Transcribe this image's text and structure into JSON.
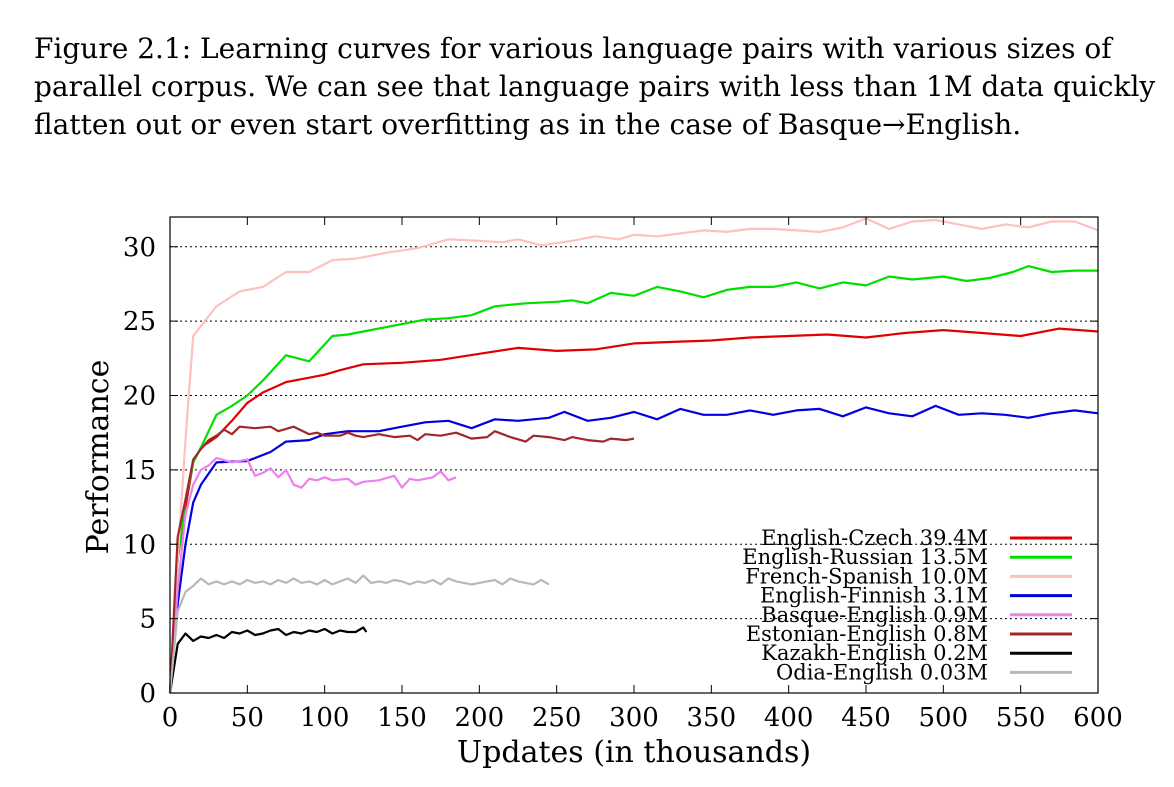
{
  "caption": "Figure 2.1: Learning curves for various language pairs with various sizes of parallel corpus. We can see that language pairs with less than 1M data quickly flatten out or even start overfitting as in the case of Basque→English.",
  "chart_data": {
    "type": "line",
    "title": "",
    "xlabel": "Updates (in thousands)",
    "ylabel": "Performance",
    "xlim": [
      0,
      600
    ],
    "ylim": [
      0,
      32
    ],
    "xticks": [
      0,
      50,
      100,
      150,
      200,
      250,
      300,
      350,
      400,
      450,
      500,
      550,
      600
    ],
    "yticks": [
      0,
      5,
      10,
      15,
      20,
      25,
      30
    ],
    "grid": "horizontal dotted",
    "legend_position": "bottom-right",
    "series": [
      {
        "name": "English-Czech 39.4M",
        "color": "#e00000",
        "points": [
          [
            0,
            0
          ],
          [
            5,
            9
          ],
          [
            10,
            12.5
          ],
          [
            15,
            15.5
          ],
          [
            20,
            16.5
          ],
          [
            30,
            17.2
          ],
          [
            40,
            18.3
          ],
          [
            50,
            19.5
          ],
          [
            60,
            20.2
          ],
          [
            75,
            20.9
          ],
          [
            90,
            21.2
          ],
          [
            100,
            21.4
          ],
          [
            110,
            21.7
          ],
          [
            125,
            22.1
          ],
          [
            150,
            22.2
          ],
          [
            175,
            22.4
          ],
          [
            200,
            22.8
          ],
          [
            225,
            23.2
          ],
          [
            250,
            23.0
          ],
          [
            275,
            23.1
          ],
          [
            300,
            23.5
          ],
          [
            325,
            23.6
          ],
          [
            350,
            23.7
          ],
          [
            375,
            23.9
          ],
          [
            400,
            24.0
          ],
          [
            425,
            24.1
          ],
          [
            450,
            23.9
          ],
          [
            475,
            24.2
          ],
          [
            500,
            24.4
          ],
          [
            525,
            24.2
          ],
          [
            550,
            24.0
          ],
          [
            575,
            24.5
          ],
          [
            600,
            24.3
          ]
        ]
      },
      {
        "name": "English-Russian 13.5M",
        "color": "#00e000",
        "points": [
          [
            0,
            0
          ],
          [
            5,
            9
          ],
          [
            10,
            13
          ],
          [
            15,
            15.5
          ],
          [
            20,
            16.5
          ],
          [
            30,
            18.7
          ],
          [
            40,
            19.3
          ],
          [
            50,
            20.0
          ],
          [
            60,
            21.0
          ],
          [
            75,
            22.7
          ],
          [
            90,
            22.3
          ],
          [
            105,
            24.0
          ],
          [
            115,
            24.1
          ],
          [
            125,
            24.3
          ],
          [
            150,
            24.8
          ],
          [
            165,
            25.1
          ],
          [
            180,
            25.2
          ],
          [
            195,
            25.4
          ],
          [
            210,
            26.0
          ],
          [
            230,
            26.2
          ],
          [
            250,
            26.3
          ],
          [
            260,
            26.4
          ],
          [
            270,
            26.2
          ],
          [
            285,
            26.9
          ],
          [
            300,
            26.7
          ],
          [
            315,
            27.3
          ],
          [
            330,
            27.0
          ],
          [
            345,
            26.6
          ],
          [
            360,
            27.1
          ],
          [
            375,
            27.3
          ],
          [
            390,
            27.3
          ],
          [
            405,
            27.6
          ],
          [
            420,
            27.2
          ],
          [
            435,
            27.6
          ],
          [
            450,
            27.4
          ],
          [
            465,
            28.0
          ],
          [
            480,
            27.8
          ],
          [
            500,
            28.0
          ],
          [
            515,
            27.7
          ],
          [
            530,
            27.9
          ],
          [
            545,
            28.3
          ],
          [
            555,
            28.7
          ],
          [
            570,
            28.3
          ],
          [
            585,
            28.4
          ],
          [
            600,
            28.4
          ]
        ]
      },
      {
        "name": "French-Spanish 10.0M",
        "color": "#ffc0c0",
        "points": [
          [
            0,
            0
          ],
          [
            5,
            9
          ],
          [
            10,
            17
          ],
          [
            15,
            24
          ],
          [
            30,
            26.0
          ],
          [
            45,
            27.0
          ],
          [
            60,
            27.3
          ],
          [
            75,
            28.3
          ],
          [
            90,
            28.3
          ],
          [
            105,
            29.1
          ],
          [
            120,
            29.2
          ],
          [
            140,
            29.6
          ],
          [
            160,
            29.9
          ],
          [
            180,
            30.5
          ],
          [
            200,
            30.4
          ],
          [
            215,
            30.3
          ],
          [
            225,
            30.5
          ],
          [
            240,
            30.1
          ],
          [
            260,
            30.4
          ],
          [
            275,
            30.7
          ],
          [
            290,
            30.5
          ],
          [
            300,
            30.8
          ],
          [
            315,
            30.7
          ],
          [
            330,
            30.9
          ],
          [
            345,
            31.1
          ],
          [
            360,
            31.0
          ],
          [
            375,
            31.2
          ],
          [
            390,
            31.2
          ],
          [
            405,
            31.1
          ],
          [
            420,
            31.0
          ],
          [
            435,
            31.3
          ],
          [
            450,
            31.9
          ],
          [
            465,
            31.2
          ],
          [
            480,
            31.7
          ],
          [
            495,
            31.8
          ],
          [
            510,
            31.5
          ],
          [
            525,
            31.2
          ],
          [
            540,
            31.5
          ],
          [
            555,
            31.3
          ],
          [
            570,
            31.7
          ],
          [
            585,
            31.7
          ],
          [
            600,
            31.1
          ]
        ]
      },
      {
        "name": "English-Finnish 3.1M",
        "color": "#0000e0",
        "points": [
          [
            0,
            0
          ],
          [
            5,
            6
          ],
          [
            10,
            10
          ],
          [
            15,
            12.8
          ],
          [
            20,
            14.0
          ],
          [
            30,
            15.5
          ],
          [
            50,
            15.6
          ],
          [
            65,
            16.2
          ],
          [
            75,
            16.9
          ],
          [
            90,
            17.0
          ],
          [
            100,
            17.4
          ],
          [
            115,
            17.6
          ],
          [
            135,
            17.6
          ],
          [
            150,
            17.9
          ],
          [
            165,
            18.2
          ],
          [
            180,
            18.3
          ],
          [
            195,
            17.8
          ],
          [
            210,
            18.4
          ],
          [
            225,
            18.3
          ],
          [
            245,
            18.5
          ],
          [
            255,
            18.9
          ],
          [
            270,
            18.3
          ],
          [
            285,
            18.5
          ],
          [
            300,
            18.9
          ],
          [
            315,
            18.4
          ],
          [
            330,
            19.1
          ],
          [
            345,
            18.7
          ],
          [
            360,
            18.7
          ],
          [
            375,
            19.0
          ],
          [
            390,
            18.7
          ],
          [
            405,
            19.0
          ],
          [
            420,
            19.1
          ],
          [
            435,
            18.6
          ],
          [
            450,
            19.2
          ],
          [
            465,
            18.8
          ],
          [
            480,
            18.6
          ],
          [
            495,
            19.3
          ],
          [
            510,
            18.7
          ],
          [
            525,
            18.8
          ],
          [
            540,
            18.7
          ],
          [
            555,
            18.5
          ],
          [
            570,
            18.8
          ],
          [
            585,
            19.0
          ],
          [
            600,
            18.8
          ]
        ]
      },
      {
        "name": "Basque-English 0.9M",
        "color": "#ee80ee",
        "points": [
          [
            0,
            0
          ],
          [
            5,
            7
          ],
          [
            10,
            12
          ],
          [
            15,
            14
          ],
          [
            20,
            15.0
          ],
          [
            25,
            15.3
          ],
          [
            30,
            15.8
          ],
          [
            40,
            15.5
          ],
          [
            50,
            15.7
          ],
          [
            55,
            14.6
          ],
          [
            60,
            14.8
          ],
          [
            65,
            15.1
          ],
          [
            70,
            14.5
          ],
          [
            75,
            15.0
          ],
          [
            80,
            14.0
          ],
          [
            85,
            13.8
          ],
          [
            90,
            14.4
          ],
          [
            95,
            14.3
          ],
          [
            100,
            14.5
          ],
          [
            105,
            14.3
          ],
          [
            115,
            14.4
          ],
          [
            120,
            14.0
          ],
          [
            125,
            14.2
          ],
          [
            135,
            14.3
          ],
          [
            145,
            14.6
          ],
          [
            150,
            13.8
          ],
          [
            155,
            14.4
          ],
          [
            160,
            14.3
          ],
          [
            170,
            14.5
          ],
          [
            175,
            14.9
          ],
          [
            180,
            14.3
          ],
          [
            185,
            14.5
          ]
        ]
      },
      {
        "name": "Estonian-English 0.8M",
        "color": "#a02828",
        "points": [
          [
            0,
            0
          ],
          [
            5,
            10.5
          ],
          [
            10,
            13
          ],
          [
            15,
            15.7
          ],
          [
            20,
            16.4
          ],
          [
            25,
            17.0
          ],
          [
            30,
            17.3
          ],
          [
            35,
            17.7
          ],
          [
            40,
            17.4
          ],
          [
            45,
            17.9
          ],
          [
            55,
            17.8
          ],
          [
            65,
            17.9
          ],
          [
            70,
            17.6
          ],
          [
            80,
            17.9
          ],
          [
            90,
            17.4
          ],
          [
            95,
            17.5
          ],
          [
            100,
            17.3
          ],
          [
            110,
            17.3
          ],
          [
            115,
            17.5
          ],
          [
            120,
            17.3
          ],
          [
            125,
            17.2
          ],
          [
            135,
            17.4
          ],
          [
            145,
            17.2
          ],
          [
            155,
            17.3
          ],
          [
            160,
            17.0
          ],
          [
            165,
            17.4
          ],
          [
            175,
            17.3
          ],
          [
            185,
            17.5
          ],
          [
            195,
            17.1
          ],
          [
            205,
            17.2
          ],
          [
            210,
            17.6
          ],
          [
            220,
            17.2
          ],
          [
            230,
            16.9
          ],
          [
            235,
            17.3
          ],
          [
            245,
            17.2
          ],
          [
            255,
            17.0
          ],
          [
            260,
            17.2
          ],
          [
            270,
            17.0
          ],
          [
            280,
            16.9
          ],
          [
            285,
            17.1
          ],
          [
            295,
            17.0
          ],
          [
            300,
            17.1
          ]
        ]
      },
      {
        "name": "Kazakh-English 0.2M",
        "color": "#000000",
        "points": [
          [
            0,
            0
          ],
          [
            5,
            3.3
          ],
          [
            10,
            4.0
          ],
          [
            15,
            3.5
          ],
          [
            20,
            3.8
          ],
          [
            25,
            3.7
          ],
          [
            30,
            3.9
          ],
          [
            35,
            3.7
          ],
          [
            40,
            4.1
          ],
          [
            45,
            4.0
          ],
          [
            50,
            4.2
          ],
          [
            55,
            3.9
          ],
          [
            60,
            4.0
          ],
          [
            65,
            4.2
          ],
          [
            70,
            4.3
          ],
          [
            75,
            3.9
          ],
          [
            80,
            4.1
          ],
          [
            85,
            4.0
          ],
          [
            90,
            4.2
          ],
          [
            95,
            4.1
          ],
          [
            100,
            4.3
          ],
          [
            105,
            4.0
          ],
          [
            110,
            4.2
          ],
          [
            115,
            4.1
          ],
          [
            120,
            4.1
          ],
          [
            125,
            4.4
          ],
          [
            127,
            4.1
          ]
        ]
      },
      {
        "name": "Odia-English 0.03M",
        "color": "#b8b8b8",
        "points": [
          [
            0,
            0
          ],
          [
            5,
            5.5
          ],
          [
            10,
            6.8
          ],
          [
            15,
            7.2
          ],
          [
            20,
            7.7
          ],
          [
            25,
            7.3
          ],
          [
            30,
            7.5
          ],
          [
            35,
            7.3
          ],
          [
            40,
            7.5
          ],
          [
            45,
            7.3
          ],
          [
            50,
            7.6
          ],
          [
            55,
            7.4
          ],
          [
            60,
            7.5
          ],
          [
            65,
            7.3
          ],
          [
            70,
            7.6
          ],
          [
            75,
            7.4
          ],
          [
            80,
            7.7
          ],
          [
            85,
            7.4
          ],
          [
            90,
            7.5
          ],
          [
            95,
            7.3
          ],
          [
            100,
            7.6
          ],
          [
            105,
            7.3
          ],
          [
            110,
            7.5
          ],
          [
            115,
            7.7
          ],
          [
            120,
            7.4
          ],
          [
            125,
            7.9
          ],
          [
            130,
            7.4
          ],
          [
            135,
            7.5
          ],
          [
            140,
            7.4
          ],
          [
            145,
            7.6
          ],
          [
            150,
            7.5
          ],
          [
            155,
            7.3
          ],
          [
            160,
            7.5
          ],
          [
            165,
            7.4
          ],
          [
            170,
            7.6
          ],
          [
            175,
            7.3
          ],
          [
            180,
            7.7
          ],
          [
            185,
            7.5
          ],
          [
            190,
            7.4
          ],
          [
            195,
            7.3
          ],
          [
            200,
            7.4
          ],
          [
            210,
            7.6
          ],
          [
            215,
            7.3
          ],
          [
            220,
            7.7
          ],
          [
            225,
            7.5
          ],
          [
            230,
            7.4
          ],
          [
            235,
            7.3
          ],
          [
            240,
            7.6
          ],
          [
            245,
            7.3
          ]
        ]
      }
    ]
  }
}
